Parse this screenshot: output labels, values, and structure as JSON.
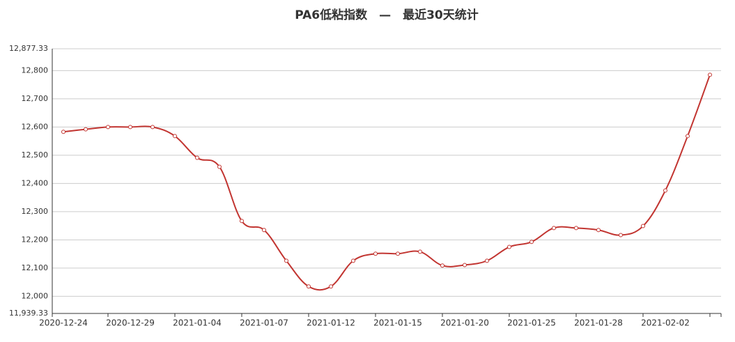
{
  "chart_data": {
    "type": "line",
    "title": "PA6低粘指数　—　最近30天统计",
    "categories": [
      "2020-12-24",
      null,
      null,
      "2020-12-29",
      null,
      null,
      "2021-01-04",
      null,
      null,
      "2021-01-07",
      null,
      null,
      "2021-01-12",
      null,
      null,
      "2021-01-15",
      null,
      null,
      "2021-01-20",
      null,
      null,
      "2021-01-25",
      null,
      null,
      "2021-01-28",
      null,
      null,
      "2021-02-02",
      null,
      null
    ],
    "series": [
      {
        "name": "PA6低粘指数",
        "color": "#c23531",
        "values": [
          12583,
          12592,
          12600,
          12600,
          12600,
          12568,
          12491,
          12459,
          12267,
          12235,
          12126,
          12035,
          12035,
          12126,
          12151,
          12151,
          12158,
          12109,
          12111,
          12126,
          12175,
          12193,
          12242,
          12242,
          12235,
          12217,
          12249,
          12375,
          12568,
          12785
        ]
      }
    ],
    "ylim": [
      11939.33,
      12877.33
    ],
    "yticks": [
      {
        "value": 11939.33,
        "label": "11,939.33"
      },
      {
        "value": 12000,
        "label": "12,000"
      },
      {
        "value": 12100,
        "label": "12,100"
      },
      {
        "value": 12200,
        "label": "12,200"
      },
      {
        "value": 12300,
        "label": "12,300"
      },
      {
        "value": 12400,
        "label": "12,400"
      },
      {
        "value": 12500,
        "label": "12,500"
      },
      {
        "value": 12600,
        "label": "12,600"
      },
      {
        "value": 12700,
        "label": "12,700"
      },
      {
        "value": 12800,
        "label": "12,800"
      },
      {
        "value": 12877.33,
        "label": "12,877.33"
      }
    ],
    "grid": true
  }
}
